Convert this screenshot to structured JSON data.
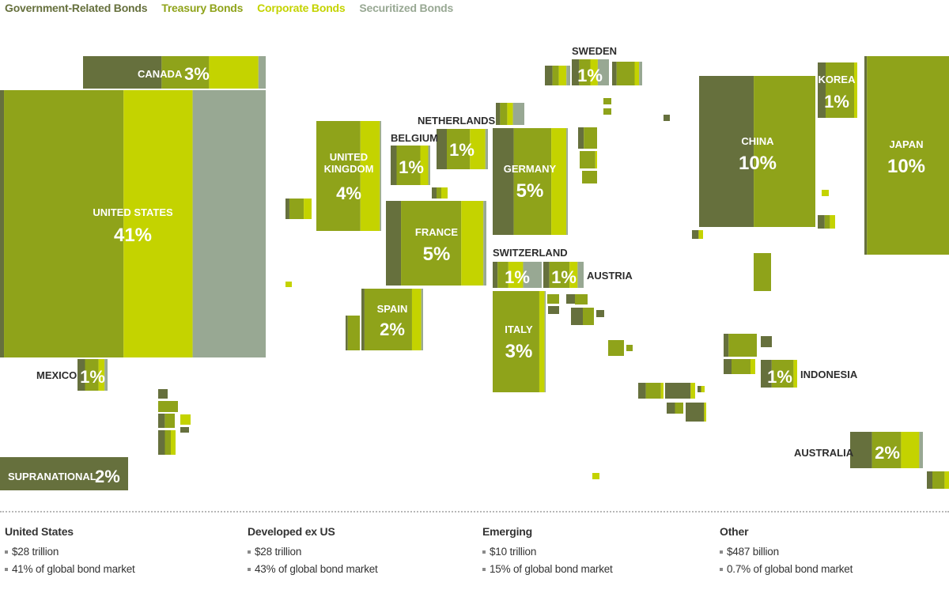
{
  "legend": [
    {
      "label": "Government-Related Bonds",
      "color": "#66703d"
    },
    {
      "label": "Treasury Bonds",
      "color": "#8fa31a"
    },
    {
      "label": "Corporate Bonds",
      "color": "#c4d300"
    },
    {
      "label": "Securitized Bonds",
      "color": "#98a893"
    }
  ],
  "chart_data": {
    "type": "treemap",
    "title": "",
    "countries": [
      {
        "name": "UNITED STATES",
        "share": "41%"
      },
      {
        "name": "CANADA",
        "share": "3%"
      },
      {
        "name": "MEXICO",
        "share": "1%"
      },
      {
        "name": "SUPRANATIONAL",
        "share": "2%"
      },
      {
        "name": "UNITED KINGDOM",
        "share": "4%"
      },
      {
        "name": "BELGIUM",
        "share": "1%"
      },
      {
        "name": "NETHERLANDS",
        "share": "1%"
      },
      {
        "name": "FRANCE",
        "share": "5%"
      },
      {
        "name": "SPAIN",
        "share": "2%"
      },
      {
        "name": "GERMANY",
        "share": "5%"
      },
      {
        "name": "SWITZERLAND",
        "share": "1%"
      },
      {
        "name": "AUSTRIA",
        "share": "1%"
      },
      {
        "name": "ITALY",
        "share": "3%"
      },
      {
        "name": "SWEDEN",
        "share": "1%"
      },
      {
        "name": "CHINA",
        "share": "10%"
      },
      {
        "name": "KOREA",
        "share": "1%"
      },
      {
        "name": "JAPAN",
        "share": "10%"
      },
      {
        "name": "INDONESIA",
        "share": "1%"
      },
      {
        "name": "AUSTRALIA",
        "share": "2%"
      }
    ]
  },
  "stats": [
    {
      "title": "United States",
      "line1": "$28 trillion",
      "line2": "41% of global bond market"
    },
    {
      "title": "Developed ex US",
      "line1": "$28 trillion",
      "line2": "43% of global bond market"
    },
    {
      "title": "Emerging",
      "line1": "$10 trillion",
      "line2": "15% of global bond market"
    },
    {
      "title": "Other",
      "line1": "$487 billion",
      "line2": "0.7% of global bond market"
    }
  ]
}
